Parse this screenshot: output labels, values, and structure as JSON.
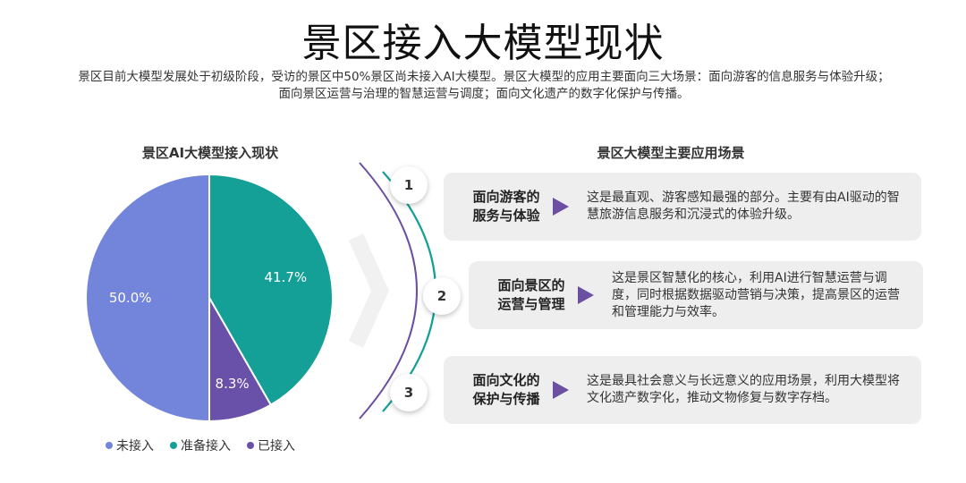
{
  "page": {
    "title": "景区接入大模型现状",
    "subtitle_line1": "景区目前大模型发展处于初级阶段，受访的景区中50%景区尚未接入AI大模型。景区大模型的应用主要面向三大场景：面向游客的信息服务与体验升级；",
    "subtitle_line2": "面向景区运营与治理的智慧运营与调度；面向文化遗产的数字化保护与传播。"
  },
  "chart_data": {
    "type": "pie",
    "title": "景区AI大模型接入现状",
    "slices": [
      {
        "name": "准备接入",
        "value": 41.7,
        "label": "41.7%",
        "color": "#14a096"
      },
      {
        "name": "已接入",
        "value": 8.3,
        "label": "8.3%",
        "color": "#6950a8"
      },
      {
        "name": "未接入",
        "value": 50.0,
        "label": "50.0%",
        "color": "#7384db"
      }
    ],
    "legend": [
      {
        "name": "未接入",
        "color": "#7384db"
      },
      {
        "name": "准备接入",
        "color": "#14a096"
      },
      {
        "name": "已接入",
        "color": "#6950a8"
      }
    ],
    "legend_position": "bottom"
  },
  "scenarios": {
    "title": "景区大模型主要应用场景",
    "items": [
      {
        "number": "1",
        "head_line1": "面向游客的",
        "head_line2": "服务与体验",
        "text": "这是最直观、游客感知最强的部分。主要有由AI驱动的智慧旅游信息服务和沉浸式的体验升级。"
      },
      {
        "number": "2",
        "head_line1": "面向景区的",
        "head_line2": "运营与管理",
        "text": "这是景区智慧化的核心，利用AI进行智慧运营与调度，同时根据数据驱动营销与决策，提高景区的运营和管理能力与效率。"
      },
      {
        "number": "3",
        "head_line1": "面向文化的",
        "head_line2": "保护与传播",
        "text": "这是最具社会意义与长远意义的应用场景，利用大模型将文化遗产数字化，推动文物修复与数字存档。"
      }
    ]
  },
  "colors": {
    "accent_purple": "#6b4fa3",
    "accent_teal": "#14a096",
    "card_bg": "#eeeeee"
  }
}
